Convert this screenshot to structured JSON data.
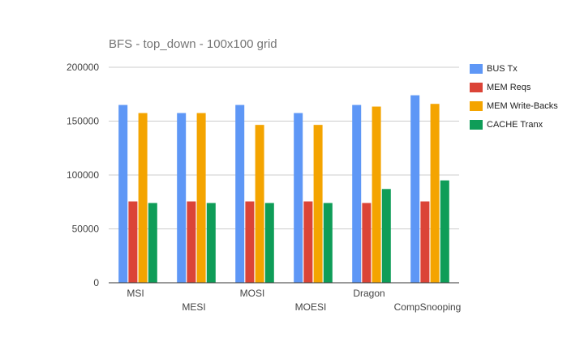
{
  "chart_data": {
    "type": "bar",
    "title": "BFS - top_down - 100x100 grid",
    "xlabel": "",
    "ylabel": "",
    "categories": [
      "MSI",
      "MESI",
      "MOSI",
      "MOESI",
      "Dragon",
      "CompSnooping"
    ],
    "series": [
      {
        "name": "BUS Tx",
        "color": "#5e97f6",
        "values": [
          165000,
          157500,
          165000,
          157500,
          165000,
          174000
        ]
      },
      {
        "name": "MEM Reqs",
        "color": "#db4437",
        "values": [
          75500,
          75500,
          75500,
          75500,
          74000,
          75500
        ]
      },
      {
        "name": "MEM Write-Backs",
        "color": "#f4a400",
        "values": [
          157500,
          157500,
          146500,
          146500,
          163500,
          166000
        ]
      },
      {
        "name": "CACHE Tranx",
        "color": "#0f9d58",
        "values": [
          74000,
          74000,
          74000,
          74000,
          87000,
          95000
        ]
      }
    ],
    "ylim": [
      0,
      200000
    ],
    "yticks": [
      0,
      50000,
      100000,
      150000,
      200000
    ],
    "grid": true,
    "legend_position": "right",
    "colors": {
      "axis": "#333333",
      "gridline": "#cccccc",
      "title": "#757575",
      "tick_label": "#444444"
    }
  }
}
